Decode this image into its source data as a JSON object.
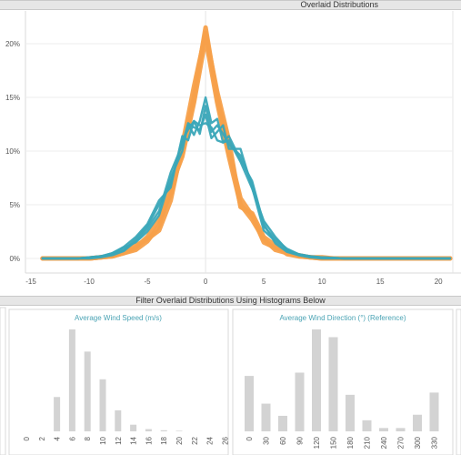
{
  "header": {
    "title": "Overlaid Distributions"
  },
  "filter_header": {
    "title": "Filter Overlaid Distributions Using Histograms Below"
  },
  "colors": {
    "orange": "#f7a04a",
    "teal": "#3aa7b8",
    "bar": "#d3d3d3"
  },
  "chart_data": [
    {
      "type": "line",
      "title": "Overlaid Distributions",
      "xlim": [
        -15,
        21
      ],
      "ylim": [
        0,
        22
      ],
      "x_ticks": [
        "-15",
        "-10",
        "-5",
        "0",
        "5",
        "10",
        "15",
        "20"
      ],
      "y_ticks": [
        "0%",
        "5%",
        "10%",
        "15%",
        "20%"
      ],
      "series": [
        {
          "color": "#f7a04a",
          "x": [
            -14,
            -13,
            -12,
            -11,
            -10,
            -9,
            -8,
            -7,
            -6,
            -5,
            -4,
            -3,
            -2,
            -1,
            0,
            1,
            2,
            3,
            4,
            5,
            6,
            7,
            8,
            9,
            10,
            11,
            12,
            14,
            16,
            18,
            21
          ],
          "y": [
            0,
            0,
            0,
            0,
            0,
            0.1,
            0.2,
            0.5,
            1,
            2,
            3.6,
            6,
            10,
            15,
            21.5,
            15,
            10,
            5.6,
            4,
            1.5,
            1,
            0.6,
            0.3,
            0.1,
            0.1,
            0,
            0,
            0,
            0,
            0,
            0
          ]
        },
        {
          "color": "#f7a04a",
          "x": [
            -14,
            -13,
            -12,
            -11,
            -10,
            -9,
            -8,
            -7,
            -6,
            -5,
            -4,
            -3,
            -2,
            -1,
            0,
            1,
            2,
            3,
            4,
            5,
            6,
            7,
            8,
            9,
            10,
            11,
            12,
            14,
            16,
            18,
            21
          ],
          "y": [
            0,
            0,
            0,
            0,
            0,
            0.1,
            0.2,
            0.5,
            0.8,
            1.6,
            3,
            6.6,
            9.5,
            14.5,
            20.5,
            14.5,
            9.5,
            5,
            3.6,
            1.8,
            0.8,
            0.5,
            0.2,
            0.1,
            0,
            0,
            0,
            0,
            0,
            0,
            0
          ]
        },
        {
          "color": "#f7a04a",
          "x": [
            -14,
            -13,
            -12,
            -11,
            -10,
            -9,
            -8,
            -7,
            -6,
            -5,
            -4,
            -3,
            -2,
            -1,
            0,
            1,
            2,
            3,
            4,
            5,
            6,
            7,
            8,
            9,
            10,
            11,
            12,
            14,
            16,
            18,
            21
          ],
          "y": [
            0,
            0,
            0,
            0,
            0,
            0.1,
            0.3,
            0.6,
            1.2,
            1.8,
            2.6,
            5.4,
            10.5,
            16,
            21,
            15.5,
            11,
            4.8,
            4.2,
            2,
            1.2,
            0.4,
            0.2,
            0.1,
            0,
            0,
            0,
            0,
            0,
            0,
            0
          ]
        },
        {
          "color": "#3aa7b8",
          "x": [
            -14,
            -13,
            -12,
            -11,
            -10,
            -9,
            -8,
            -7,
            -6,
            -5,
            -4,
            -3,
            -2,
            -1.5,
            -1,
            -0.5,
            0,
            0.5,
            1,
            1.5,
            2,
            3,
            4,
            5,
            6,
            7,
            8,
            9,
            10,
            12,
            14,
            17,
            21
          ],
          "y": [
            0,
            0,
            0,
            0,
            0.1,
            0.2,
            0.5,
            1,
            1.5,
            2.5,
            4,
            7.5,
            10,
            12.5,
            11.5,
            12.8,
            15,
            12.6,
            13,
            10.8,
            11,
            9,
            6.5,
            3.5,
            2,
            0.8,
            0.4,
            0.2,
            0.1,
            0,
            0,
            0,
            0
          ]
        },
        {
          "color": "#3aa7b8",
          "x": [
            -14,
            -13,
            -12,
            -11,
            -10,
            -9,
            -8,
            -7,
            -6,
            -5,
            -4,
            -3,
            -2,
            -1.5,
            -1,
            -0.5,
            0,
            0.5,
            1,
            1.5,
            2,
            3,
            4,
            5,
            6,
            7,
            8,
            9,
            10,
            12,
            14,
            17,
            21
          ],
          "y": [
            0,
            0,
            0,
            0,
            0.1,
            0.2,
            0.4,
            0.8,
            1.8,
            3,
            5,
            7,
            11,
            12,
            12.8,
            11.6,
            14.2,
            11.8,
            12.4,
            11.6,
            10.6,
            9.6,
            7,
            3,
            1.8,
            0.9,
            0.4,
            0.2,
            0.1,
            0,
            0,
            0,
            0
          ]
        },
        {
          "color": "#3aa7b8",
          "x": [
            -14,
            -13,
            -12,
            -11,
            -10,
            -9,
            -8,
            -7,
            -6,
            -5,
            -4,
            -3,
            -2,
            -1.5,
            -1,
            -0.5,
            0,
            0.5,
            1,
            1.5,
            2,
            3,
            4,
            5,
            6,
            7,
            8,
            9,
            10,
            12,
            14,
            17,
            21
          ],
          "y": [
            0,
            0,
            0,
            0,
            0,
            0.1,
            0.3,
            0.7,
            1.6,
            2.8,
            4.4,
            8,
            10.6,
            12.6,
            12.2,
            12,
            13.4,
            11.2,
            11.8,
            12.4,
            10.2,
            10.2,
            6.6,
            2.6,
            1.6,
            0.7,
            0.3,
            0.1,
            0.1,
            0,
            0,
            0,
            0
          ]
        },
        {
          "color": "#3aa7b8",
          "x": [
            -14,
            -13,
            -12,
            -11,
            -10,
            -9,
            -8,
            -7,
            -6,
            -5,
            -4,
            -3,
            -2,
            -1.5,
            -1,
            -0.5,
            0,
            0.5,
            1,
            1.5,
            2,
            3,
            4,
            5,
            6,
            7,
            8,
            9,
            10,
            12,
            14,
            17,
            21
          ],
          "y": [
            0,
            0,
            0,
            0,
            0.1,
            0.2,
            0.5,
            1.1,
            2,
            3.2,
            5.4,
            6.6,
            11.4,
            11,
            12.8,
            12.4,
            12.6,
            12.2,
            11,
            10.8,
            11.4,
            9.2,
            7.2,
            3.2,
            1.4,
            0.6,
            0.3,
            0.1,
            0,
            0,
            0,
            0,
            0
          ]
        }
      ]
    },
    {
      "type": "bar",
      "title": "Average Wind Speed (m/s)",
      "categories": [
        "0",
        "2",
        "4",
        "6",
        "8",
        "10",
        "12",
        "14",
        "16",
        "18",
        "20",
        "22",
        "24",
        "26"
      ],
      "values": [
        0,
        0,
        31,
        92,
        72,
        47,
        19,
        6,
        2,
        1,
        0.5,
        0,
        0,
        0
      ]
    },
    {
      "type": "bar",
      "title": "Average Wind Direction (°) (Reference)",
      "categories": [
        "0",
        "30",
        "60",
        "90",
        "120",
        "150",
        "180",
        "210",
        "240",
        "270",
        "300",
        "330"
      ],
      "values": [
        50,
        25,
        14,
        53,
        92,
        85,
        33,
        10,
        3,
        3,
        15,
        35
      ]
    }
  ]
}
